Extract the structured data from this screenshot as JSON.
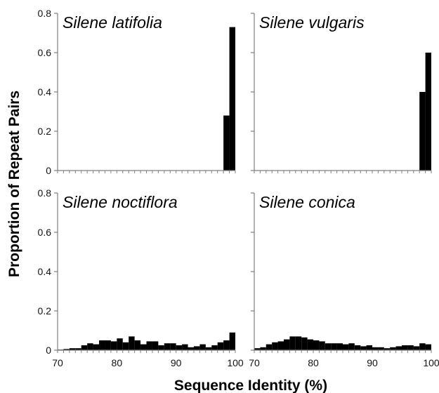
{
  "chart_data": [
    {
      "type": "bar",
      "title": "Silene latifolia",
      "xlim": [
        70,
        100
      ],
      "ylim": [
        0,
        0.8
      ],
      "bin_width": 1,
      "x": [
        99,
        100
      ],
      "values": [
        0.28,
        0.73
      ]
    },
    {
      "type": "bar",
      "title": "Silene vulgaris",
      "xlim": [
        70,
        100
      ],
      "ylim": [
        0,
        0.8
      ],
      "bin_width": 1,
      "x": [
        99,
        100
      ],
      "values": [
        0.4,
        0.6
      ]
    },
    {
      "type": "bar",
      "title": "Silene noctiflora",
      "xlim": [
        70,
        100
      ],
      "ylim": [
        0,
        0.8
      ],
      "bin_width": 1,
      "x": [
        71,
        72,
        73,
        74,
        75,
        76,
        77,
        78,
        79,
        80,
        81,
        82,
        83,
        84,
        85,
        86,
        87,
        88,
        89,
        90,
        91,
        92,
        93,
        94,
        95,
        96,
        97,
        98,
        99,
        100
      ],
      "values": [
        0.003,
        0.006,
        0.01,
        0.01,
        0.025,
        0.035,
        0.03,
        0.05,
        0.05,
        0.045,
        0.06,
        0.04,
        0.07,
        0.05,
        0.03,
        0.045,
        0.045,
        0.025,
        0.035,
        0.035,
        0.025,
        0.03,
        0.015,
        0.02,
        0.03,
        0.015,
        0.025,
        0.04,
        0.05,
        0.09
      ]
    },
    {
      "type": "bar",
      "title": "Silene conica",
      "xlim": [
        70,
        100
      ],
      "ylim": [
        0,
        0.8
      ],
      "bin_width": 1,
      "x": [
        71,
        72,
        73,
        74,
        75,
        76,
        77,
        78,
        79,
        80,
        81,
        82,
        83,
        84,
        85,
        86,
        87,
        88,
        89,
        90,
        91,
        92,
        93,
        94,
        95,
        96,
        97,
        98,
        99,
        100
      ],
      "values": [
        0.01,
        0.015,
        0.03,
        0.04,
        0.045,
        0.055,
        0.07,
        0.07,
        0.065,
        0.055,
        0.05,
        0.045,
        0.035,
        0.035,
        0.035,
        0.03,
        0.035,
        0.025,
        0.02,
        0.025,
        0.015,
        0.015,
        0.01,
        0.015,
        0.02,
        0.025,
        0.025,
        0.02,
        0.035,
        0.03
      ]
    }
  ],
  "ylabel": "Proportion of Repeat Pairs",
  "xlabel": "Sequence Identity (%)",
  "y_ticks": [
    0,
    0.2,
    0.4,
    0.6,
    0.8
  ],
  "y_tick_labels": [
    "0",
    "0.2",
    "0.4",
    "0.6",
    "0.8"
  ],
  "x_ticks": [
    70,
    80,
    90,
    100
  ],
  "x_tick_labels": [
    "70",
    "80",
    "90",
    "100"
  ],
  "colors": {
    "bars": "#000000",
    "axes": "#7f7f7f"
  }
}
